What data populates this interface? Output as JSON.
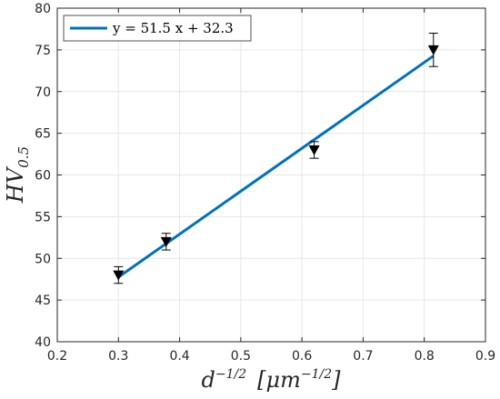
{
  "chart_data": {
    "type": "scatter",
    "xlim": [
      0.2,
      0.9
    ],
    "ylim": [
      40,
      80
    ],
    "x_ticks": [
      "0.2",
      "0.3",
      "0.4",
      "0.5",
      "0.6",
      "0.7",
      "0.8",
      "0.9"
    ],
    "y_ticks": [
      "40",
      "45",
      "50",
      "55",
      "60",
      "65",
      "70",
      "75",
      "80"
    ],
    "grid": true,
    "xlabel": {
      "base": "d",
      "sup": "−1/2",
      "bracket_open": "[",
      "unit_base": "μm",
      "unit_sup": "−1/2",
      "bracket_close": "]"
    },
    "ylabel": {
      "base": "HV",
      "sub": "0.5"
    },
    "legend_position": "top-left",
    "series": [
      {
        "marker": "triangle-down",
        "color": "#000000",
        "points": [
          {
            "x": 0.3,
            "y": 48,
            "err": 1
          },
          {
            "x": 0.378,
            "y": 52,
            "err": 1
          },
          {
            "x": 0.62,
            "y": 63,
            "err": 1
          },
          {
            "x": 0.815,
            "y": 75,
            "err": 2
          }
        ]
      },
      {
        "name": "y = 51.5 x + 32.3",
        "type": "line",
        "color": "#0072BD",
        "slope": 51.5,
        "intercept": 32.3,
        "x_range": [
          0.3,
          0.815
        ]
      }
    ]
  }
}
